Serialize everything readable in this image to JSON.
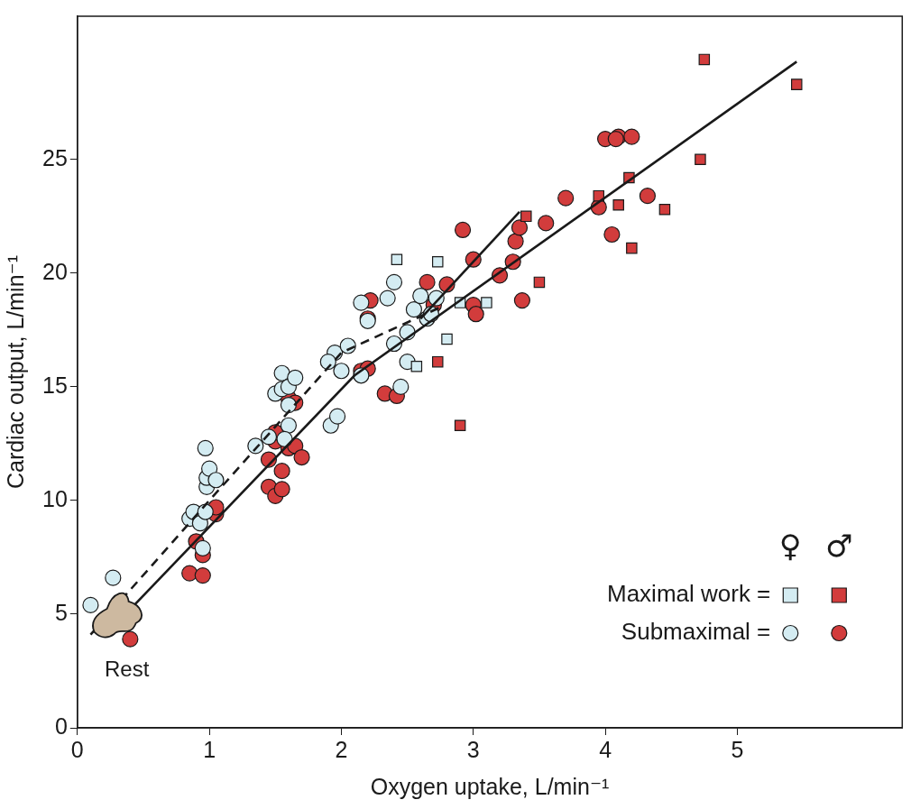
{
  "chart_data": {
    "type": "scatter",
    "x_label": "Oxygen uptake, L/min⁻¹",
    "y_label": "Cardiac output, L/min⁻¹",
    "xlim": [
      0,
      6.25
    ],
    "ylim": [
      0,
      31.3
    ],
    "xticks": [
      0,
      1,
      2,
      3,
      4,
      5
    ],
    "yticks": [
      0,
      5,
      10,
      15,
      20,
      25
    ],
    "grid": false,
    "legend": "lower right",
    "series": [
      {
        "name": "Maximal work =",
        "group": "♀",
        "color": "#d4ecf2",
        "marker": "square",
        "x": [
          2.42,
          2.73,
          2.57,
          2.8,
          2.9,
          3.1
        ],
        "y": [
          20.6,
          20.5,
          15.9,
          17.1,
          18.7,
          18.7
        ]
      },
      {
        "name": "Maximal work =",
        "group": "♂",
        "color": "#d23c3c",
        "marker": "square",
        "x": [
          2.73,
          2.9,
          3.4,
          3.5,
          3.95,
          4.1,
          4.18,
          4.2,
          4.45,
          4.72,
          4.75,
          5.45
        ],
        "y": [
          16.1,
          13.3,
          22.5,
          19.6,
          23.4,
          23.0,
          24.2,
          21.1,
          22.8,
          25.0,
          29.4,
          28.3
        ]
      },
      {
        "name": "Submaximal =",
        "group": "♀",
        "color": "#d4ecf2",
        "marker": "circle",
        "x": [
          0.1,
          0.27,
          0.85,
          0.88,
          0.93,
          0.95,
          0.97,
          0.98,
          0.98,
          1.0,
          1.05,
          0.97,
          1.35,
          1.45,
          1.5,
          1.55,
          1.55,
          1.6,
          1.6,
          1.6,
          1.65,
          1.57,
          1.92,
          1.97,
          1.95,
          1.9,
          2.0,
          2.05,
          2.15,
          2.2,
          2.15,
          2.35,
          2.4,
          2.4,
          2.5,
          2.55,
          2.6,
          2.65,
          2.5,
          2.45,
          2.68,
          2.72
        ],
        "y": [
          5.4,
          6.6,
          9.2,
          9.5,
          9.0,
          7.9,
          9.5,
          10.6,
          11.0,
          11.4,
          10.9,
          12.3,
          12.4,
          12.8,
          14.7,
          15.6,
          14.9,
          15.0,
          14.2,
          13.3,
          15.4,
          12.7,
          13.3,
          13.7,
          16.5,
          16.1,
          15.7,
          16.8,
          18.7,
          17.9,
          15.5,
          18.9,
          19.6,
          16.9,
          16.1,
          18.4,
          19.0,
          18.0,
          17.4,
          15.0,
          18.2,
          18.9
        ]
      },
      {
        "name": "Submaximal =",
        "group": "♂",
        "color": "#d23c3c",
        "marker": "circle",
        "x": [
          0.4,
          0.85,
          0.95,
          0.95,
          0.9,
          1.05,
          1.05,
          1.45,
          1.5,
          1.55,
          1.45,
          1.5,
          1.5,
          1.55,
          1.6,
          1.65,
          1.7,
          1.6,
          1.65,
          2.15,
          2.2,
          2.2,
          2.22,
          2.33,
          2.42,
          2.65,
          2.8,
          2.7,
          2.92,
          3.0,
          3.0,
          3.02,
          3.2,
          3.3,
          3.32,
          3.35,
          3.37,
          3.55,
          3.7,
          3.95,
          4.0,
          4.05,
          4.1,
          4.08,
          4.2,
          4.32
        ],
        "y": [
          3.9,
          6.8,
          6.7,
          7.6,
          8.2,
          9.4,
          9.7,
          10.6,
          10.2,
          10.5,
          11.8,
          12.6,
          13.0,
          11.3,
          12.3,
          12.4,
          11.9,
          14.5,
          14.3,
          15.7,
          15.8,
          18.0,
          18.8,
          14.7,
          14.6,
          19.6,
          19.5,
          18.6,
          21.9,
          20.6,
          18.6,
          18.2,
          19.9,
          20.5,
          21.4,
          22.0,
          18.8,
          22.2,
          23.3,
          22.9,
          25.9,
          21.7,
          26.0,
          25.9,
          26.0,
          23.4
        ]
      },
      {
        "type": "line",
        "line_style": "solid",
        "color": "#1a1a1a",
        "x": [
          0.2,
          2.1,
          5.45
        ],
        "y": [
          4.0,
          15.5,
          29.3
        ]
      },
      {
        "type": "line",
        "line_style": "dashed",
        "color": "#1a1a1a",
        "x": [
          0.1,
          1.0,
          2.0,
          2.75
        ],
        "y": [
          4.1,
          10.0,
          16.5,
          18.5
        ]
      },
      {
        "type": "line",
        "line_style": "solid",
        "color": "#1a1a1a",
        "x": [
          2.6,
          3.35
        ],
        "y": [
          18.0,
          22.7
        ]
      }
    ],
    "annotations": [
      {
        "text": "Rest",
        "x": 0.32,
        "y": 5.0
      }
    ]
  }
}
